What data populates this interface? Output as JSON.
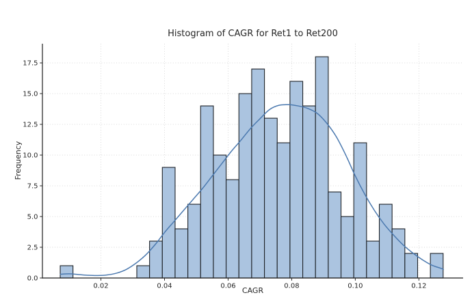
{
  "chart_data": {
    "type": "bar",
    "subtype": "histogram-with-kde",
    "title": "Histogram of CAGR for Ret1 to Ret200",
    "xlabel": "CAGR",
    "ylabel": "Frequency",
    "grid": "dotted",
    "legend": "none",
    "xlim": [
      0.0016,
      0.1339
    ],
    "ylim": [
      0,
      19.06
    ],
    "bin_start": 0.0072,
    "bin_width": 0.004014,
    "bin_counts": [
      1,
      0,
      0,
      0,
      0,
      0,
      1,
      3,
      9,
      4,
      6,
      14,
      10,
      8,
      15,
      17,
      13,
      11,
      16,
      14,
      18,
      7,
      5,
      11,
      3,
      6,
      4,
      2,
      0,
      2
    ],
    "total_count": 200,
    "kde_line": {
      "x": [
        0.0072,
        0.01,
        0.013,
        0.016,
        0.019,
        0.022,
        0.025,
        0.028,
        0.031,
        0.034,
        0.037,
        0.04,
        0.043,
        0.046,
        0.049,
        0.052,
        0.055,
        0.058,
        0.061,
        0.064,
        0.067,
        0.07,
        0.073,
        0.076,
        0.079,
        0.082,
        0.085,
        0.088,
        0.091,
        0.094,
        0.097,
        0.1,
        0.103,
        0.106,
        0.109,
        0.112,
        0.115,
        0.118,
        0.121,
        0.124,
        0.127,
        0.1277
      ],
      "y": [
        0.3,
        0.34,
        0.28,
        0.22,
        0.2,
        0.25,
        0.4,
        0.7,
        1.2,
        1.85,
        2.7,
        3.7,
        4.6,
        5.5,
        6.4,
        7.3,
        8.3,
        9.3,
        10.3,
        11.2,
        12.15,
        12.95,
        13.7,
        14.05,
        14.1,
        14.0,
        13.8,
        13.4,
        12.6,
        11.5,
        10.0,
        8.3,
        6.8,
        5.5,
        4.4,
        3.5,
        2.7,
        2.05,
        1.5,
        1.05,
        0.78,
        0.7
      ]
    },
    "x_ticks": {
      "values": [
        0.02,
        0.04,
        0.06,
        0.08,
        0.1,
        0.12
      ],
      "labels": [
        "0.02",
        "0.04",
        "0.06",
        "0.08",
        "0.10",
        "0.12"
      ]
    },
    "y_ticks": {
      "values": [
        0,
        2.5,
        5,
        7.5,
        10,
        12.5,
        15,
        17.5
      ],
      "labels": [
        "0.0",
        "2.5",
        "5.0",
        "7.5",
        "10.0",
        "12.5",
        "15.0",
        "17.5"
      ]
    },
    "colors": {
      "bar_fill": "#abc4e0",
      "bar_edge": "#1c2025",
      "kde": "#4b79af",
      "grid": "#d4d4d4",
      "spine": "#1a1a1a",
      "tick": "#262626",
      "text": "#262626",
      "background": "#ffffff"
    }
  }
}
